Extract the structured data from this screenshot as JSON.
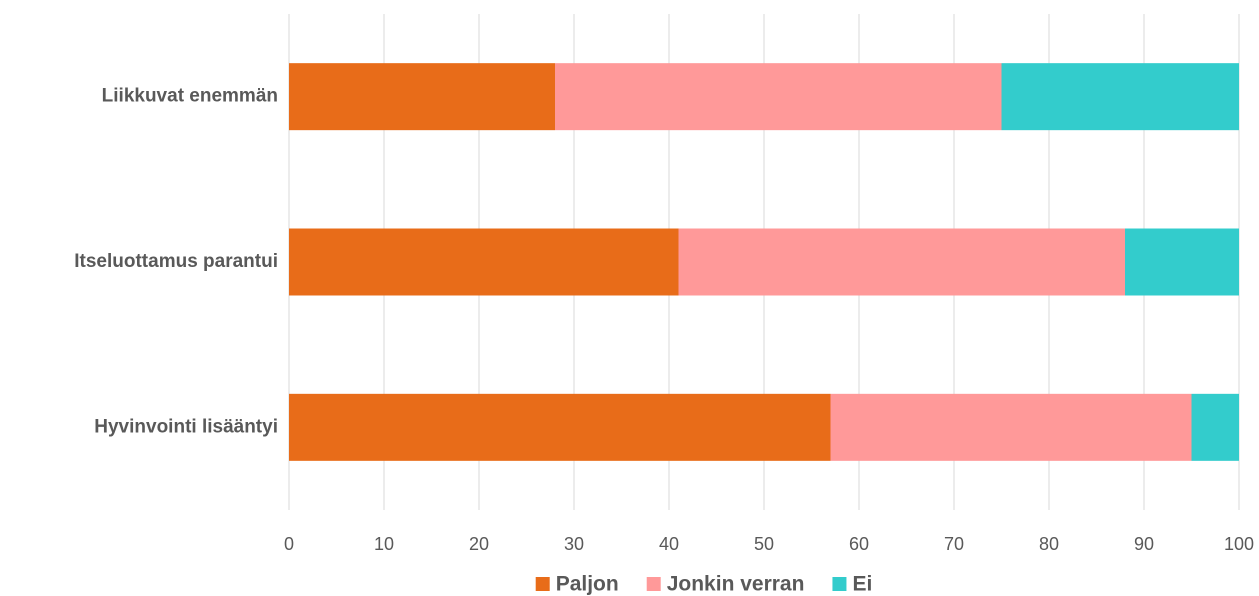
{
  "chart_data": {
    "type": "stacked_barh",
    "categories": [
      "Liikkuvat enemmän",
      "Itseluottamus parantui",
      "Hyvinvointi lisääntyi"
    ],
    "series": [
      {
        "name": "Paljon",
        "color": "#e86c19",
        "values": [
          28,
          41,
          57
        ]
      },
      {
        "name": "Jonkin verran",
        "color": "#ff9999",
        "values": [
          47,
          47,
          38
        ]
      },
      {
        "name": "Ei",
        "color": "#33cccc",
        "values": [
          25,
          12,
          5
        ]
      }
    ],
    "xlim": [
      0,
      100
    ],
    "xticks": [
      0,
      10,
      20,
      30,
      40,
      50,
      60,
      70,
      80,
      90,
      100
    ],
    "grid": true,
    "legend": "bottom"
  }
}
